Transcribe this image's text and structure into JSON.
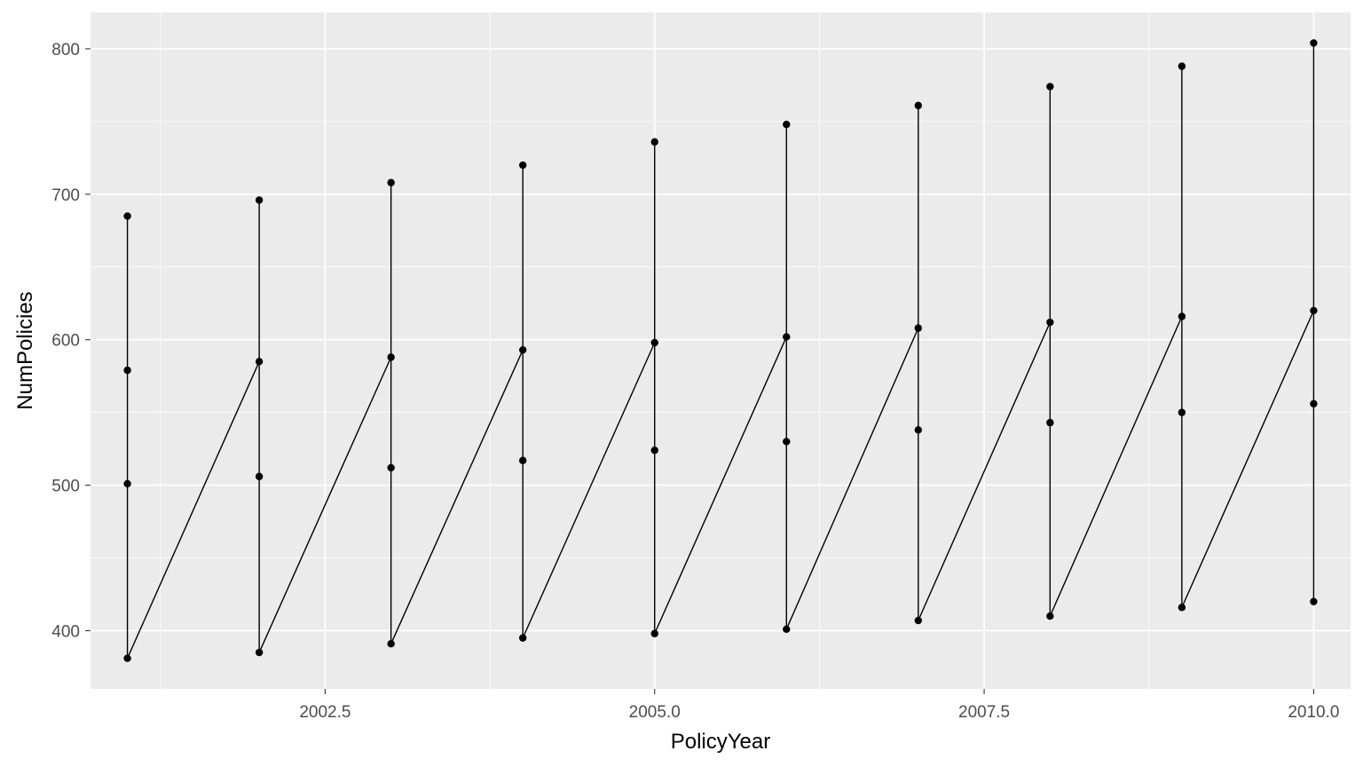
{
  "chart_data": {
    "type": "line",
    "xlabel": "PolicyYear",
    "ylabel": "NumPolicies",
    "xlim": [
      2000.72,
      2010.28
    ],
    "ylim": [
      360,
      825
    ],
    "x_breaks": [
      2002.5,
      2005.0,
      2007.5,
      2010.0
    ],
    "x_minor_breaks": [
      2001.25,
      2003.75,
      2006.25,
      2008.75
    ],
    "y_breaks": [
      400,
      500,
      600,
      700,
      800
    ],
    "y_minor_breaks": [
      450,
      550,
      650,
      750
    ],
    "grid": true,
    "legend": "none",
    "point_color": "#000000",
    "line_color": "#000000",
    "panel_background": "#EBEBEB",
    "points": [
      {
        "x": 2001,
        "y": 685
      },
      {
        "x": 2001,
        "y": 579
      },
      {
        "x": 2001,
        "y": 501
      },
      {
        "x": 2001,
        "y": 381
      },
      {
        "x": 2002,
        "y": 585
      },
      {
        "x": 2002,
        "y": 696
      },
      {
        "x": 2002,
        "y": 506
      },
      {
        "x": 2002,
        "y": 385
      },
      {
        "x": 2003,
        "y": 588
      },
      {
        "x": 2003,
        "y": 708
      },
      {
        "x": 2003,
        "y": 512
      },
      {
        "x": 2003,
        "y": 391
      },
      {
        "x": 2004,
        "y": 593
      },
      {
        "x": 2004,
        "y": 720
      },
      {
        "x": 2004,
        "y": 517
      },
      {
        "x": 2004,
        "y": 395
      },
      {
        "x": 2005,
        "y": 598
      },
      {
        "x": 2005,
        "y": 736
      },
      {
        "x": 2005,
        "y": 524
      },
      {
        "x": 2005,
        "y": 398
      },
      {
        "x": 2006,
        "y": 602
      },
      {
        "x": 2006,
        "y": 748
      },
      {
        "x": 2006,
        "y": 530
      },
      {
        "x": 2006,
        "y": 401
      },
      {
        "x": 2007,
        "y": 608
      },
      {
        "x": 2007,
        "y": 761
      },
      {
        "x": 2007,
        "y": 538
      },
      {
        "x": 2007,
        "y": 407
      },
      {
        "x": 2008,
        "y": 612
      },
      {
        "x": 2008,
        "y": 774
      },
      {
        "x": 2008,
        "y": 543
      },
      {
        "x": 2008,
        "y": 410
      },
      {
        "x": 2009,
        "y": 616
      },
      {
        "x": 2009,
        "y": 788
      },
      {
        "x": 2009,
        "y": 550
      },
      {
        "x": 2009,
        "y": 416
      },
      {
        "x": 2010,
        "y": 620
      },
      {
        "x": 2010,
        "y": 804
      },
      {
        "x": 2010,
        "y": 556
      },
      {
        "x": 2010,
        "y": 420
      }
    ]
  }
}
